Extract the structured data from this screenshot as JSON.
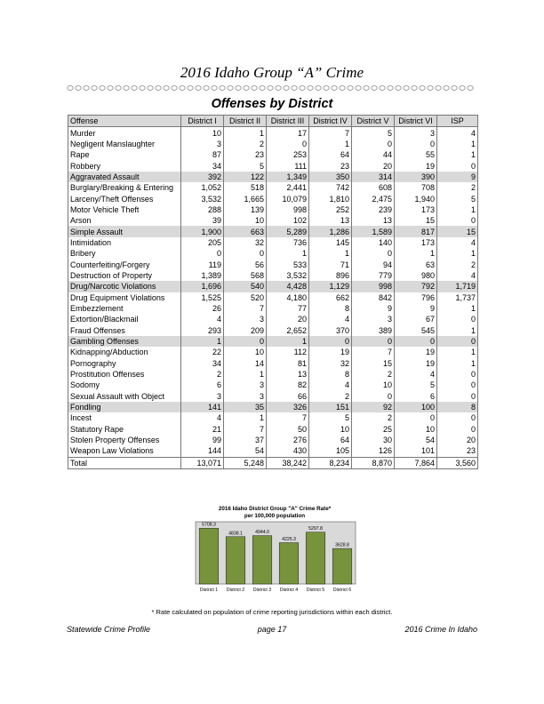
{
  "title": "2016 Idaho Group “A” Crime",
  "subtitle": "Offenses by District",
  "table": {
    "headers": [
      "Offense",
      "District I",
      "District II",
      "District III",
      "District IV",
      "District V",
      "District VI",
      "ISP"
    ],
    "rows": [
      {
        "name": "Murder",
        "values": [
          "10",
          "1",
          "17",
          "7",
          "5",
          "3",
          "4"
        ],
        "shaded": false
      },
      {
        "name": "Negligent Manslaughter",
        "values": [
          "3",
          "2",
          "0",
          "1",
          "0",
          "0",
          "1"
        ],
        "shaded": false
      },
      {
        "name": "Rape",
        "values": [
          "87",
          "23",
          "253",
          "64",
          "44",
          "55",
          "1"
        ],
        "shaded": false
      },
      {
        "name": "Robbery",
        "values": [
          "34",
          "5",
          "111",
          "23",
          "20",
          "19",
          "0"
        ],
        "shaded": false
      },
      {
        "name": "Aggravated Assault",
        "values": [
          "392",
          "122",
          "1,349",
          "350",
          "314",
          "390",
          "9"
        ],
        "shaded": true
      },
      {
        "name": "Burglary/Breaking & Entering",
        "values": [
          "1,052",
          "518",
          "2,441",
          "742",
          "608",
          "708",
          "2"
        ],
        "shaded": false
      },
      {
        "name": "Larceny/Theft Offenses",
        "values": [
          "3,532",
          "1,665",
          "10,079",
          "1,810",
          "2,475",
          "1,940",
          "5"
        ],
        "shaded": false
      },
      {
        "name": "Motor Vehicle Theft",
        "values": [
          "288",
          "139",
          "998",
          "252",
          "239",
          "173",
          "1"
        ],
        "shaded": false
      },
      {
        "name": "Arson",
        "values": [
          "39",
          "10",
          "102",
          "13",
          "13",
          "15",
          "0"
        ],
        "shaded": false
      },
      {
        "name": "Simple Assault",
        "values": [
          "1,900",
          "663",
          "5,289",
          "1,286",
          "1,589",
          "817",
          "15"
        ],
        "shaded": true
      },
      {
        "name": "Intimidation",
        "values": [
          "205",
          "32",
          "736",
          "145",
          "140",
          "173",
          "4"
        ],
        "shaded": false
      },
      {
        "name": "Bribery",
        "values": [
          "0",
          "0",
          "1",
          "1",
          "0",
          "1",
          "1"
        ],
        "shaded": false
      },
      {
        "name": "Counterfeiting/Forgery",
        "values": [
          "119",
          "56",
          "533",
          "71",
          "94",
          "63",
          "2"
        ],
        "shaded": false
      },
      {
        "name": "Destruction of Property",
        "values": [
          "1,389",
          "568",
          "3,532",
          "896",
          "779",
          "980",
          "4"
        ],
        "shaded": false
      },
      {
        "name": "Drug/Narcotic Violations",
        "values": [
          "1,696",
          "540",
          "4,428",
          "1,129",
          "998",
          "792",
          "1,719"
        ],
        "shaded": true
      },
      {
        "name": "Drug Equipment Violations",
        "values": [
          "1,525",
          "520",
          "4,180",
          "662",
          "842",
          "796",
          "1,737"
        ],
        "shaded": false
      },
      {
        "name": "Embezzlement",
        "values": [
          "26",
          "7",
          "77",
          "8",
          "9",
          "9",
          "1"
        ],
        "shaded": false
      },
      {
        "name": "Extortion/Blackmail",
        "values": [
          "4",
          "3",
          "20",
          "4",
          "3",
          "67",
          "0"
        ],
        "shaded": false
      },
      {
        "name": "Fraud Offenses",
        "values": [
          "293",
          "209",
          "2,652",
          "370",
          "389",
          "545",
          "1"
        ],
        "shaded": false
      },
      {
        "name": "Gambling Offenses",
        "values": [
          "1",
          "0",
          "1",
          "0",
          "0",
          "0",
          "0"
        ],
        "shaded": true
      },
      {
        "name": "Kidnapping/Abduction",
        "values": [
          "22",
          "10",
          "112",
          "19",
          "7",
          "19",
          "1"
        ],
        "shaded": false
      },
      {
        "name": "Pornography",
        "values": [
          "34",
          "14",
          "81",
          "32",
          "15",
          "19",
          "1"
        ],
        "shaded": false
      },
      {
        "name": "Prostitution Offenses",
        "values": [
          "2",
          "1",
          "13",
          "8",
          "2",
          "4",
          "0"
        ],
        "shaded": false
      },
      {
        "name": "Sodomy",
        "values": [
          "6",
          "3",
          "82",
          "4",
          "10",
          "5",
          "0"
        ],
        "shaded": false
      },
      {
        "name": "Sexual Assault with Object",
        "values": [
          "3",
          "3",
          "66",
          "2",
          "0",
          "6",
          "0"
        ],
        "shaded": false
      },
      {
        "name": "Fondling",
        "values": [
          "141",
          "35",
          "326",
          "151",
          "92",
          "100",
          "8"
        ],
        "shaded": true
      },
      {
        "name": "Incest",
        "values": [
          "4",
          "1",
          "7",
          "5",
          "2",
          "0",
          "0"
        ],
        "shaded": false
      },
      {
        "name": "Statutory Rape",
        "values": [
          "21",
          "7",
          "50",
          "10",
          "25",
          "10",
          "0"
        ],
        "shaded": false
      },
      {
        "name": "Stolen Property Offenses",
        "values": [
          "99",
          "37",
          "276",
          "64",
          "30",
          "54",
          "20"
        ],
        "shaded": false
      },
      {
        "name": "Weapon Law Violations",
        "values": [
          "144",
          "54",
          "430",
          "105",
          "126",
          "101",
          "23"
        ],
        "shaded": false
      }
    ],
    "total": {
      "name": "Total",
      "values": [
        "13,071",
        "5,248",
        "38,242",
        "8,234",
        "8,870",
        "7,864",
        "3,560"
      ]
    }
  },
  "chart_data": {
    "type": "bar",
    "title": "2016 Idaho District Group \"A\" Crime Rate*",
    "subtitle": "per 100,000 population",
    "categories": [
      "District 1",
      "District 2",
      "District 3",
      "District 4",
      "District 5",
      "District 6"
    ],
    "values": [
      5708.3,
      4838.1,
      4944.0,
      4225.3,
      5297.8,
      3628.8
    ],
    "value_labels": [
      "5708.3",
      "4838.1",
      "4944.0",
      "4225.3",
      "5297.8",
      "3628.8"
    ],
    "ylim": [
      0,
      6000
    ],
    "grid": false,
    "bar_color": "#77933c",
    "plot_bg": "#d9d9d9"
  },
  "footnote": "* Rate calculated on population of crime reporting jurisdictions within each district.",
  "footer": {
    "left": "Statewide Crime Profile",
    "center": "page 17",
    "right": "2016 Crime In Idaho"
  }
}
